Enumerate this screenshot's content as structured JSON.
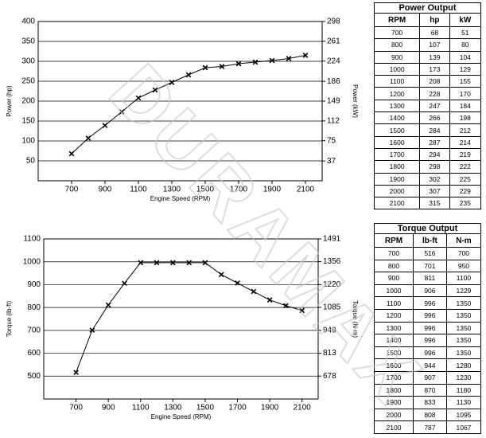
{
  "chart_data": [
    {
      "type": "line",
      "marker": "x",
      "color": "#000000",
      "grid": true,
      "x_label": "Engine Speed (RPM)",
      "y_label": "Power (hp)",
      "y2_label": "Power (kW)",
      "x": [
        700,
        800,
        900,
        1000,
        1100,
        1200,
        1300,
        1400,
        1500,
        1600,
        1700,
        1800,
        1900,
        2000,
        2100
      ],
      "values": [
        68,
        107,
        139,
        173,
        208,
        228,
        247,
        266,
        284,
        287,
        294,
        298,
        302,
        307,
        315
      ],
      "xlim": [
        500,
        2200
      ],
      "xticks": [
        700,
        900,
        1100,
        1300,
        1500,
        1700,
        1900,
        2100
      ],
      "ylim": [
        0,
        400
      ],
      "yticks": [
        50,
        100,
        150,
        200,
        250,
        300,
        350,
        400
      ],
      "y2lim": [
        0,
        298
      ],
      "y2ticks": [
        37,
        75,
        112,
        149,
        186,
        224,
        261,
        298
      ]
    },
    {
      "type": "line",
      "marker": "x",
      "color": "#000000",
      "grid": true,
      "x_label": "Engine Speed (RPM)",
      "y_label": "Torque (lb-ft)",
      "y2_label": "Torque (N-m)",
      "x": [
        700,
        800,
        900,
        1000,
        1100,
        1200,
        1300,
        1400,
        1500,
        1600,
        1700,
        1800,
        1900,
        2000,
        2100
      ],
      "values": [
        516,
        701,
        811,
        906,
        996,
        996,
        996,
        996,
        996,
        944,
        907,
        870,
        833,
        808,
        787
      ],
      "xlim": [
        500,
        2200
      ],
      "xticks": [
        700,
        900,
        1100,
        1300,
        1500,
        1700,
        1900,
        2100
      ],
      "ylim": [
        400,
        1100
      ],
      "yticks": [
        500,
        600,
        700,
        800,
        900,
        1000,
        1100
      ],
      "y2lim": [
        542,
        1491
      ],
      "y2ticks": [
        678,
        813,
        949,
        1085,
        1220,
        1356,
        1491
      ]
    }
  ],
  "tables": [
    {
      "title": "Power Output",
      "columns": [
        "RPM",
        "hp",
        "kW"
      ],
      "rows": [
        [
          700,
          68,
          51
        ],
        [
          800,
          107,
          80
        ],
        [
          900,
          139,
          104
        ],
        [
          1000,
          173,
          129
        ],
        [
          1100,
          208,
          155
        ],
        [
          1200,
          228,
          170
        ],
        [
          1300,
          247,
          184
        ],
        [
          1400,
          266,
          198
        ],
        [
          1500,
          284,
          212
        ],
        [
          1600,
          287,
          214
        ],
        [
          1700,
          294,
          219
        ],
        [
          1800,
          298,
          222
        ],
        [
          1900,
          302,
          225
        ],
        [
          2000,
          307,
          229
        ],
        [
          2100,
          315,
          235
        ]
      ]
    },
    {
      "title": "Torque Output",
      "columns": [
        "RPM",
        "lb-ft",
        "N-m"
      ],
      "rows": [
        [
          700,
          516,
          700
        ],
        [
          800,
          701,
          950
        ],
        [
          900,
          811,
          1100
        ],
        [
          1000,
          906,
          1229
        ],
        [
          1100,
          996,
          1350
        ],
        [
          1200,
          996,
          1350
        ],
        [
          1300,
          996,
          1350
        ],
        [
          1400,
          996,
          1350
        ],
        [
          1500,
          996,
          1350
        ],
        [
          1600,
          944,
          1280
        ],
        [
          1700,
          907,
          1230
        ],
        [
          1800,
          870,
          1180
        ],
        [
          1900,
          833,
          1130
        ],
        [
          2000,
          808,
          1095
        ],
        [
          2100,
          787,
          1067
        ]
      ]
    }
  ],
  "watermark": "DURAMAX"
}
